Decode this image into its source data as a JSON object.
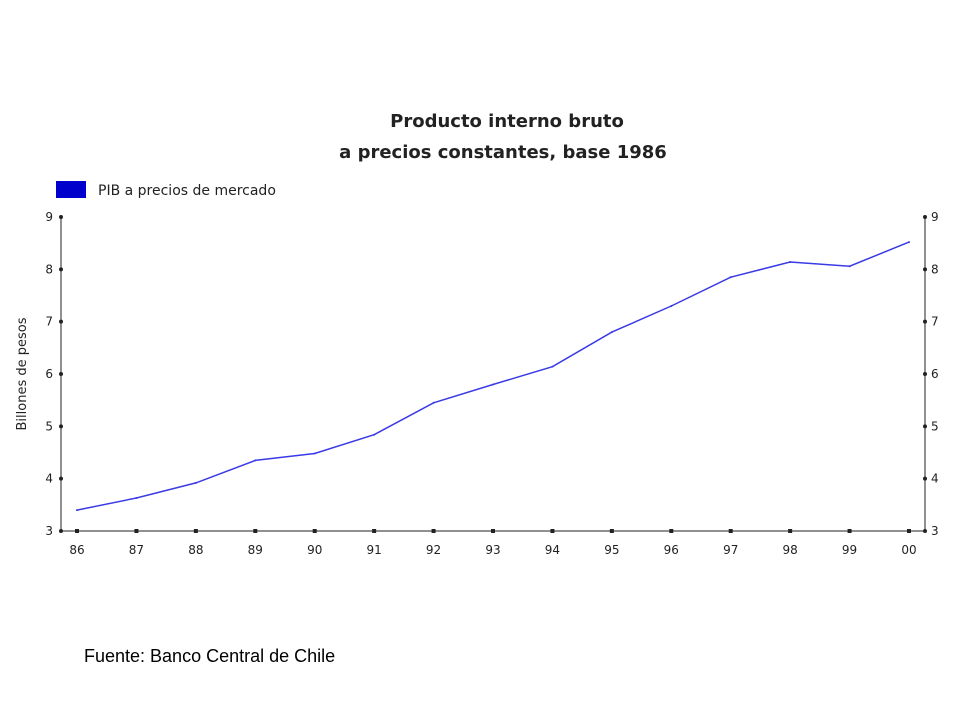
{
  "chart_data": {
    "type": "line",
    "title_lines": [
      "Producto interno bruto",
      "a precios constantes, base 1986"
    ],
    "ylabel": "Billones de pesos",
    "xlabel": "",
    "categories": [
      "86",
      "87",
      "88",
      "89",
      "90",
      "91",
      "92",
      "93",
      "94",
      "95",
      "96",
      "97",
      "98",
      "99",
      "00"
    ],
    "series": [
      {
        "name": "PIB a precios de mercado",
        "color": "#3a3ae6",
        "values": [
          3.4,
          3.63,
          3.92,
          4.35,
          4.48,
          4.84,
          5.45,
          5.8,
          6.14,
          6.8,
          7.3,
          7.85,
          8.14,
          8.06,
          8.52
        ]
      }
    ],
    "ylim": [
      3,
      9
    ],
    "yticks": [
      3,
      4,
      5,
      6,
      7,
      8,
      9
    ],
    "legend_position": "top-left",
    "grid": false
  },
  "legend_swatch_color": "#0000cc",
  "source_text": "Fuente: Banco Central de Chile"
}
